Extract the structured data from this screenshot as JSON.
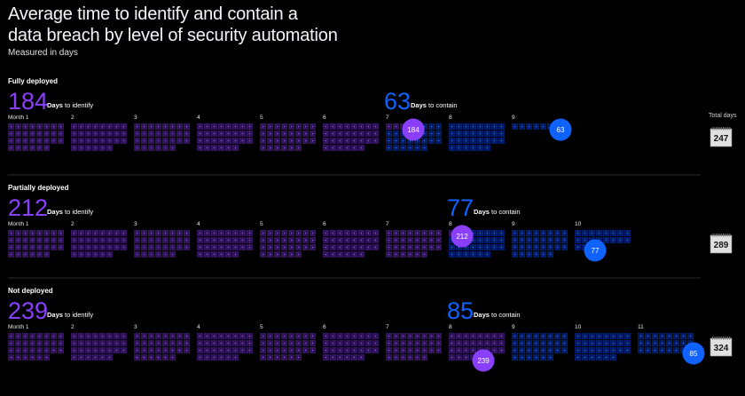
{
  "title_line1": "Average time to identify and contain a",
  "title_line2": "data breach by level of security automation",
  "subtitle": "Measured in days",
  "total_heading": "Total days",
  "identify_caption_bold": "Days",
  "identify_caption_rest": " to identify",
  "contain_caption_bold": "Days",
  "contain_caption_rest": " to contain",
  "month_prefix": "Month ",
  "colors": {
    "identify": "#8a3ffc",
    "contain": "#0f62fe",
    "identify_cell": "#31135e",
    "contain_cell": "#001d6c",
    "divider": "#393939"
  },
  "chart_data": {
    "type": "table",
    "unit": "days",
    "days_per_month": 30,
    "series": [
      {
        "name": "Fully deployed",
        "identify_days": 184,
        "contain_days": 63,
        "total_days": 247
      },
      {
        "name": "Partially deployed",
        "identify_days": 212,
        "contain_days": 77,
        "total_days": 289
      },
      {
        "name": "Not deployed",
        "identify_days": 239,
        "contain_days": 85,
        "total_days": 324
      }
    ]
  }
}
